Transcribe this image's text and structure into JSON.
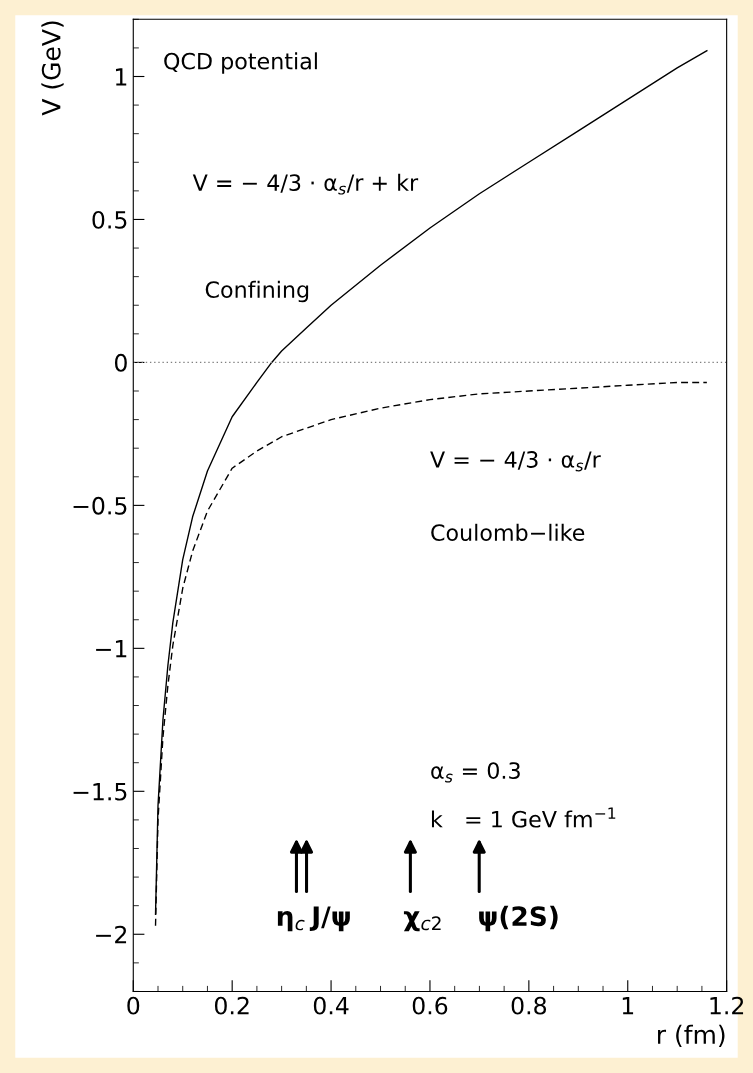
{
  "chart_data": {
    "type": "line",
    "xlabel": "r (fm)",
    "ylabel": "V (GeV)",
    "xlim": [
      0,
      1.2
    ],
    "ylim": [
      -2.2,
      1.2
    ],
    "xticks": [
      0,
      0.2,
      0.4,
      0.6,
      0.8,
      1,
      1.2
    ],
    "yticks": [
      -2,
      -1.5,
      -1,
      -0.5,
      0,
      0.5,
      1
    ],
    "grid": false,
    "series": [
      {
        "color": "#000000",
        "line_style": "solid",
        "x": [
          0.045,
          0.05,
          0.06,
          0.07,
          0.08,
          0.1,
          0.12,
          0.15,
          0.2,
          0.25,
          0.28,
          0.3,
          0.35,
          0.4,
          0.5,
          0.6,
          0.7,
          0.8,
          0.9,
          1.0,
          1.1,
          1.16
        ],
        "values": [
          -1.93,
          -1.55,
          -1.25,
          -1.06,
          -0.91,
          -0.69,
          -0.54,
          -0.38,
          -0.19,
          -0.07,
          0.0,
          0.04,
          0.12,
          0.2,
          0.34,
          0.47,
          0.59,
          0.7,
          0.81,
          0.92,
          1.03,
          1.09
        ]
      },
      {
        "color": "#000000",
        "line_style": "dashed",
        "x": [
          0.045,
          0.05,
          0.06,
          0.07,
          0.08,
          0.1,
          0.12,
          0.15,
          0.2,
          0.25,
          0.3,
          0.4,
          0.5,
          0.6,
          0.7,
          0.8,
          0.9,
          1.0,
          1.1,
          1.16
        ],
        "values": [
          -1.97,
          -1.6,
          -1.31,
          -1.13,
          -0.99,
          -0.79,
          -0.66,
          -0.52,
          -0.37,
          -0.31,
          -0.26,
          -0.2,
          -0.16,
          -0.13,
          -0.11,
          -0.1,
          -0.09,
          -0.08,
          -0.07,
          -0.07
        ]
      }
    ],
    "ref_lines": [
      {
        "axis": "y",
        "value": 0,
        "color": "#808080",
        "line_style": "dotted"
      }
    ],
    "annotations": [
      "QCD potential",
      "V = − 4/3 · α$_{s}$/r + kr",
      "Confining",
      "V = − 4/3 · α$_{s}$/r",
      "Coulomb−like",
      "α$_{s}$ = 0.3",
      "k   = 1 GeV fm$^{−1}$",
      "η$_{c}$",
      "J/ψ",
      "χ$_{c2}$",
      "ψ(2S)"
    ]
  }
}
